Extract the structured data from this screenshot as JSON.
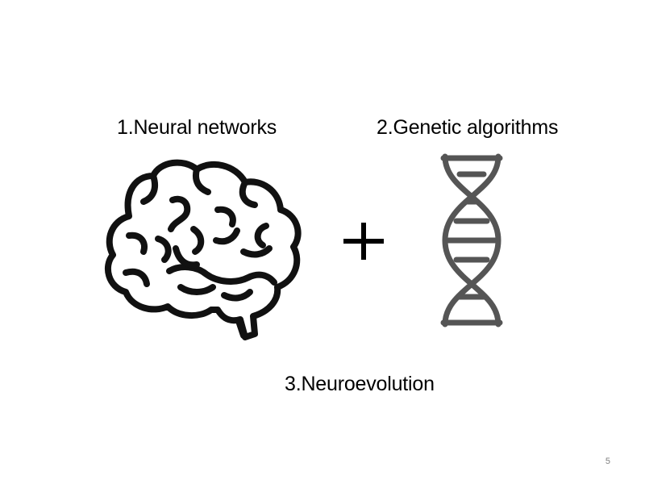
{
  "slide": {
    "items": [
      {
        "label": "1.Neural networks",
        "icon": "brain-icon"
      },
      {
        "label": "2.Genetic algorithms",
        "icon": "dna-icon"
      }
    ],
    "operator": "plus-icon",
    "result": "3.Neuroevolution",
    "page_number": "5"
  },
  "colors": {
    "text": "#000000",
    "brain_stroke": "#111111",
    "dna_stroke": "#555555",
    "page_number": "#808080"
  }
}
